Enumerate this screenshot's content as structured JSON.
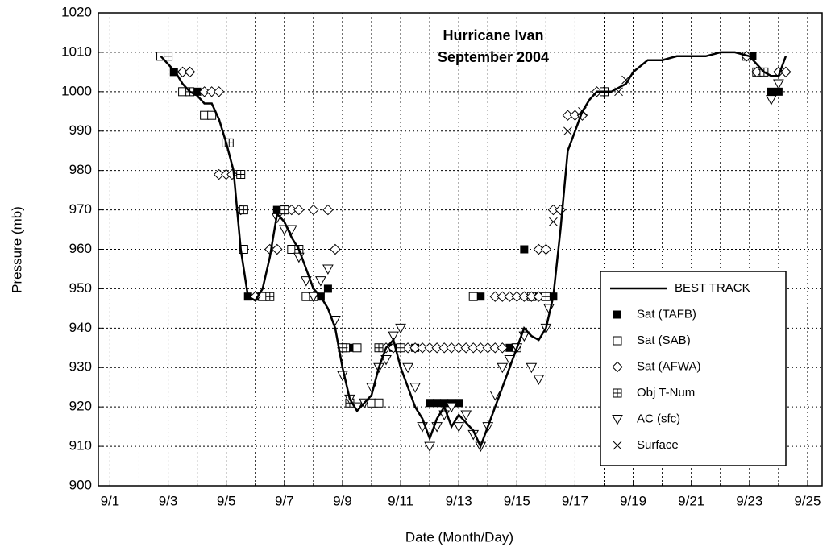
{
  "chart_data": {
    "type": "line",
    "title": "Hurricane Ivan",
    "subtitle": "September 2004",
    "xlabel": "Date (Month/Day)",
    "ylabel": "Pressure (mb)",
    "xlim": [
      0.6,
      25.5
    ],
    "ylim": [
      900,
      1020
    ],
    "xticks": [
      {
        "value": 1,
        "label": "9/1"
      },
      {
        "value": 3,
        "label": "9/3"
      },
      {
        "value": 5,
        "label": "9/5"
      },
      {
        "value": 7,
        "label": "9/7"
      },
      {
        "value": 9,
        "label": "9/9"
      },
      {
        "value": 11,
        "label": "9/11"
      },
      {
        "value": 13,
        "label": "9/13"
      },
      {
        "value": 15,
        "label": "9/15"
      },
      {
        "value": 17,
        "label": "9/17"
      },
      {
        "value": 19,
        "label": "9/19"
      },
      {
        "value": 21,
        "label": "9/21"
      },
      {
        "value": 23,
        "label": "9/23"
      },
      {
        "value": 25,
        "label": "9/25"
      }
    ],
    "x_minor_ticks": [
      2,
      4,
      6,
      8,
      10,
      12,
      14,
      16,
      18,
      20,
      22,
      24
    ],
    "yticks": [
      900,
      910,
      920,
      930,
      940,
      950,
      960,
      970,
      980,
      990,
      1000,
      1010,
      1020
    ],
    "grid": true,
    "legend": "lower right",
    "series": [
      {
        "name": "BEST TRACK",
        "type": "line",
        "color": "#000000",
        "x": [
          2.75,
          3,
          3.25,
          3.5,
          3.75,
          4,
          4.25,
          4.5,
          4.75,
          5,
          5.25,
          5.5,
          5.75,
          6,
          6.25,
          6.5,
          6.75,
          7,
          7.25,
          7.5,
          7.75,
          8,
          8.25,
          8.5,
          8.75,
          9,
          9.25,
          9.5,
          9.75,
          10,
          10.25,
          10.5,
          10.75,
          11,
          11.25,
          11.5,
          11.75,
          12,
          12.25,
          12.5,
          12.75,
          13,
          13.25,
          13.5,
          13.75,
          14,
          14.25,
          14.5,
          14.75,
          15,
          15.25,
          15.5,
          15.75,
          16,
          16.25,
          16.5,
          16.75,
          17,
          17.25,
          17.5,
          17.75,
          18,
          18.25,
          18.5,
          18.75,
          19,
          19.5,
          20,
          20.5,
          21,
          21.5,
          22,
          22.5,
          23,
          23.5,
          23.75,
          24,
          24.25
        ],
        "values": [
          1009,
          1007,
          1005,
          1002,
          1000,
          999,
          997,
          997,
          993,
          987,
          980,
          960,
          948,
          947,
          950,
          958,
          969,
          967,
          963,
          960,
          955,
          950,
          948,
          945,
          940,
          930,
          922,
          919,
          921,
          923,
          930,
          935,
          937,
          930,
          925,
          920,
          917,
          912,
          917,
          920,
          915,
          918,
          916,
          914,
          910,
          915,
          920,
          925,
          930,
          935,
          940,
          938,
          937,
          940,
          948,
          965,
          985,
          990,
          995,
          998,
          1000,
          1000,
          1000,
          1001,
          1002,
          1005,
          1008,
          1008,
          1009,
          1009,
          1009,
          1010,
          1010,
          1009,
          1005,
          1004,
          1004,
          1009
        ]
      },
      {
        "name": "Sat (TAFB)",
        "type": "scatter",
        "marker": "square-filled",
        "color": "#000000",
        "x": [
          2.9,
          3.2,
          3.5,
          3.75,
          4,
          5,
          5.1,
          5.6,
          5.75,
          6.1,
          6.25,
          6.75,
          7,
          7.25,
          7.75,
          8.25,
          8.5,
          9.25,
          10.25,
          10.75,
          11.5,
          12,
          12.25,
          12.5,
          12.75,
          13,
          13.75,
          14.75,
          15,
          15.25,
          15.75,
          16,
          16.25,
          23.1,
          23.75,
          24
        ],
        "values": [
          1009,
          1005,
          1000,
          1000,
          1000,
          987,
          987,
          960,
          948,
          948,
          948,
          970,
          970,
          960,
          948,
          948,
          950,
          935,
          935,
          935,
          935,
          921,
          921,
          921,
          921,
          921,
          948,
          935,
          935,
          960,
          948,
          948,
          948,
          1009,
          1000,
          1000
        ]
      },
      {
        "name": "Sat (SAB)",
        "type": "scatter",
        "marker": "square-open",
        "color": "#000000",
        "x": [
          2.75,
          3.5,
          4.25,
          4.5,
          5,
          5.6,
          6.25,
          7,
          7.25,
          7.75,
          9.1,
          9.5,
          10,
          10.25,
          13.5,
          15.5,
          22.9,
          23.25
        ],
        "values": [
          1009,
          1000,
          994,
          994,
          987,
          960,
          948,
          970,
          960,
          948,
          935,
          935,
          921,
          921,
          948,
          948,
          1009,
          1005
        ]
      },
      {
        "name": "Sat (AFWA)",
        "type": "scatter",
        "marker": "diamond",
        "color": "#000000",
        "x": [
          3.5,
          3.75,
          4.25,
          4.5,
          4.75,
          4.75,
          5,
          5.2,
          5.5,
          6,
          6.5,
          6.75,
          7.25,
          7.5,
          8,
          8.5,
          8.75,
          9,
          10.5,
          10.75,
          11,
          11.25,
          11.5,
          11.75,
          12,
          12.25,
          12.5,
          12.75,
          13,
          13.25,
          13.5,
          13.75,
          14,
          14.25,
          14.5,
          14.25,
          14.5,
          14.75,
          15,
          15.25,
          15.5,
          15.75,
          15.75,
          16,
          16.25,
          16.5,
          16.75,
          17,
          17.25,
          17.75,
          18,
          22.9,
          23.25,
          24,
          24.25
        ],
        "values": [
          1005,
          1005,
          1000,
          1000,
          1000,
          979,
          979,
          979,
          970,
          948,
          960,
          960,
          970,
          970,
          970,
          970,
          960,
          935,
          935,
          935,
          935,
          935,
          935,
          935,
          935,
          935,
          935,
          935,
          935,
          935,
          935,
          935,
          935,
          935,
          935,
          948,
          948,
          948,
          948,
          948,
          948,
          948,
          960,
          960,
          970,
          970,
          994,
          994,
          994,
          1000,
          1000,
          1009,
          1005,
          1005,
          1005
        ]
      },
      {
        "name": "Obj T-Num",
        "type": "scatter",
        "marker": "square-plus",
        "color": "#000000",
        "x": [
          3,
          3.75,
          5.1,
          5.5,
          5.6,
          6.5,
          7,
          7.5,
          8,
          9,
          9.25,
          10.25,
          11,
          15,
          16,
          18,
          23.5
        ],
        "values": [
          1009,
          1000,
          987,
          979,
          970,
          948,
          970,
          960,
          948,
          935,
          921,
          935,
          935,
          935,
          948,
          1000,
          1005
        ]
      },
      {
        "name": "AC (sfc)",
        "type": "scatter",
        "marker": "triangle-down",
        "color": "#000000",
        "x": [
          6.75,
          7,
          7.25,
          7.5,
          7.75,
          8,
          8.25,
          8.5,
          8.75,
          9,
          9.25,
          9.5,
          9.75,
          10,
          10.25,
          10.5,
          10.75,
          11,
          11.25,
          11.5,
          11.75,
          12,
          12.25,
          12.5,
          12.75,
          13,
          13.25,
          13.5,
          13.75,
          14,
          14.25,
          14.5,
          14.75,
          15,
          15.25,
          15.5,
          15.75,
          16,
          16.1,
          23.75,
          24
        ],
        "values": [
          968,
          965,
          965,
          958,
          952,
          948,
          952,
          955,
          942,
          928,
          922,
          920,
          921,
          925,
          930,
          932,
          938,
          940,
          930,
          925,
          915,
          910,
          915,
          918,
          920,
          915,
          918,
          913,
          910,
          915,
          923,
          930,
          932,
          935,
          938,
          930,
          927,
          940,
          945,
          998,
          1002
        ]
      },
      {
        "name": "Surface",
        "type": "scatter",
        "marker": "cross",
        "color": "#000000",
        "x": [
          16.25,
          16.75,
          17.25,
          18.5,
          18.75
        ],
        "values": [
          967,
          990,
          995,
          1000,
          1003
        ]
      }
    ]
  }
}
